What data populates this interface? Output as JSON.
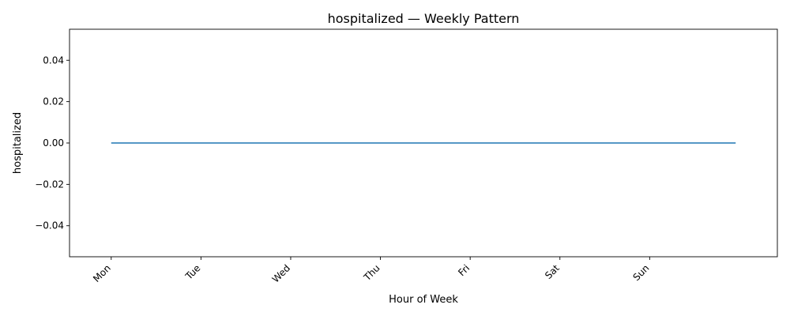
{
  "chart_data": {
    "type": "line",
    "title": "hospitalized — Weekly Pattern",
    "xlabel": "Hour of Week",
    "ylabel": "hospitalized",
    "xlim": [
      -11.15,
      178.15
    ],
    "ylim": [
      -0.055,
      0.055
    ],
    "x_ticks": [
      {
        "value": 0,
        "label": "Mon"
      },
      {
        "value": 24,
        "label": "Tue"
      },
      {
        "value": 48,
        "label": "Wed"
      },
      {
        "value": 72,
        "label": "Thu"
      },
      {
        "value": 96,
        "label": "Fri"
      },
      {
        "value": 120,
        "label": "Sat"
      },
      {
        "value": 144,
        "label": "Sun"
      }
    ],
    "y_ticks": [
      {
        "value": 0.04,
        "label": "0.04"
      },
      {
        "value": 0.02,
        "label": "0.02"
      },
      {
        "value": 0.0,
        "label": "0.00"
      },
      {
        "value": -0.02,
        "label": "−0.02"
      },
      {
        "value": -0.04,
        "label": "−0.04"
      }
    ],
    "grid": false,
    "legend": "none",
    "series": [
      {
        "color": "#1f77b4",
        "x_start": 0,
        "x_end": 167,
        "value": 0
      }
    ]
  }
}
